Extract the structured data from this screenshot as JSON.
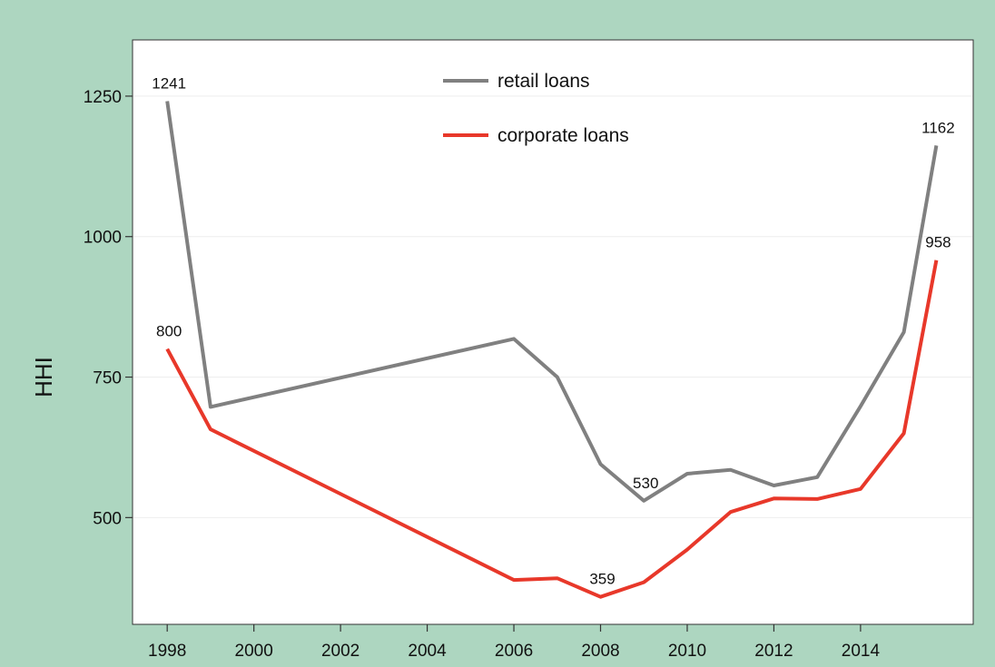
{
  "colors": {
    "background": "#add6c0",
    "plot_background": "#ffffff",
    "gridline": "#eeeeee",
    "axis": "#333333",
    "retail": "#808080",
    "corporate": "#e8382a"
  },
  "chart_data": {
    "type": "line",
    "title": "",
    "xlabel": "",
    "ylabel": "HHI",
    "xlim": [
      1997.2,
      2016.6
    ],
    "ylim": [
      310,
      1350
    ],
    "x_ticks": [
      1998,
      2000,
      2002,
      2004,
      2006,
      2008,
      2010,
      2012,
      2014
    ],
    "x_tick_labels": [
      "1998",
      "2000",
      "2002",
      "2004",
      "2006",
      "2008",
      "2010",
      "2012",
      "2014"
    ],
    "y_ticks": [
      500,
      750,
      1000,
      1250
    ],
    "y_tick_labels": [
      "500",
      "750",
      "1000",
      "1250"
    ],
    "grid": "horizontal",
    "legend_position": "top-center",
    "series": [
      {
        "name": "retail loans",
        "color": "#808080",
        "x": [
          1998,
          1999,
          2006,
          2007,
          2008,
          2009,
          2010,
          2011,
          2012,
          2013,
          2014,
          2015,
          2015.75
        ],
        "y": [
          1241,
          697,
          818,
          750,
          595,
          530,
          578,
          585,
          557,
          572,
          698,
          830,
          1162
        ]
      },
      {
        "name": "corporate loans",
        "color": "#e8382a",
        "x": [
          1998,
          1999,
          2006,
          2007,
          2008,
          2009,
          2010,
          2011,
          2012,
          2013,
          2014,
          2015,
          2015.75
        ],
        "y": [
          800,
          657,
          389,
          392,
          359,
          385,
          443,
          510,
          534,
          533,
          551,
          650,
          958
        ]
      }
    ],
    "annotations": [
      {
        "series": 0,
        "x": 1998,
        "y": 1241,
        "text": "1241"
      },
      {
        "series": 0,
        "x": 2009,
        "y": 530,
        "text": "530"
      },
      {
        "series": 0,
        "x": 2015.75,
        "y": 1162,
        "text": "1162"
      },
      {
        "series": 1,
        "x": 1998,
        "y": 800,
        "text": "800"
      },
      {
        "series": 1,
        "x": 2008,
        "y": 359,
        "text": "359"
      },
      {
        "series": 1,
        "x": 2015.75,
        "y": 958,
        "text": "958"
      }
    ]
  }
}
